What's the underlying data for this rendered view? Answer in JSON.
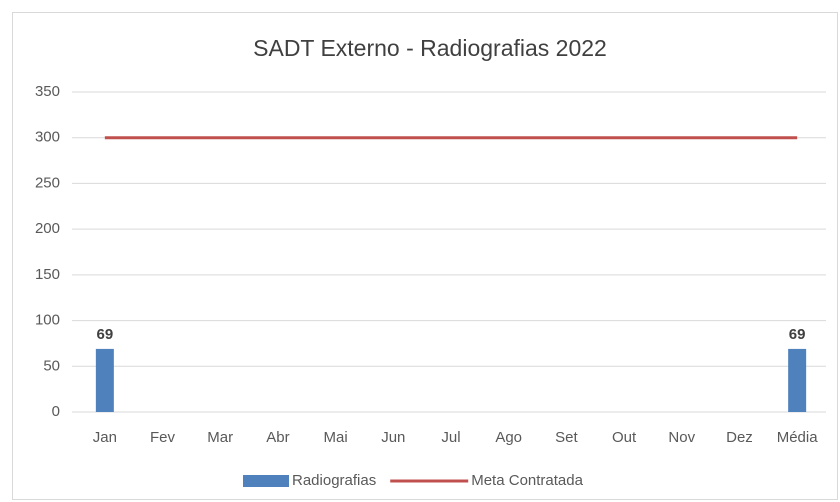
{
  "chart_data": {
    "type": "bar",
    "title": "SADT Externo - Radiografias 2022",
    "categories": [
      "Jan",
      "Fev",
      "Mar",
      "Abr",
      "Mai",
      "Jun",
      "Jul",
      "Ago",
      "Set",
      "Out",
      "Nov",
      "Dez",
      "Média"
    ],
    "series": [
      {
        "name": "Radiografias",
        "type": "bar",
        "color": "#4f81bd",
        "values": [
          69,
          null,
          null,
          null,
          null,
          null,
          null,
          null,
          null,
          null,
          null,
          null,
          69
        ]
      },
      {
        "name": "Meta Contratada",
        "type": "line",
        "color": "#c0504d",
        "values": [
          300,
          300,
          300,
          300,
          300,
          300,
          300,
          300,
          300,
          300,
          300,
          300,
          300
        ]
      }
    ],
    "ylim": [
      0,
      350
    ],
    "yticks": [
      0,
      50,
      100,
      150,
      200,
      250,
      300,
      350
    ],
    "grid": true,
    "legend": "bottom"
  }
}
